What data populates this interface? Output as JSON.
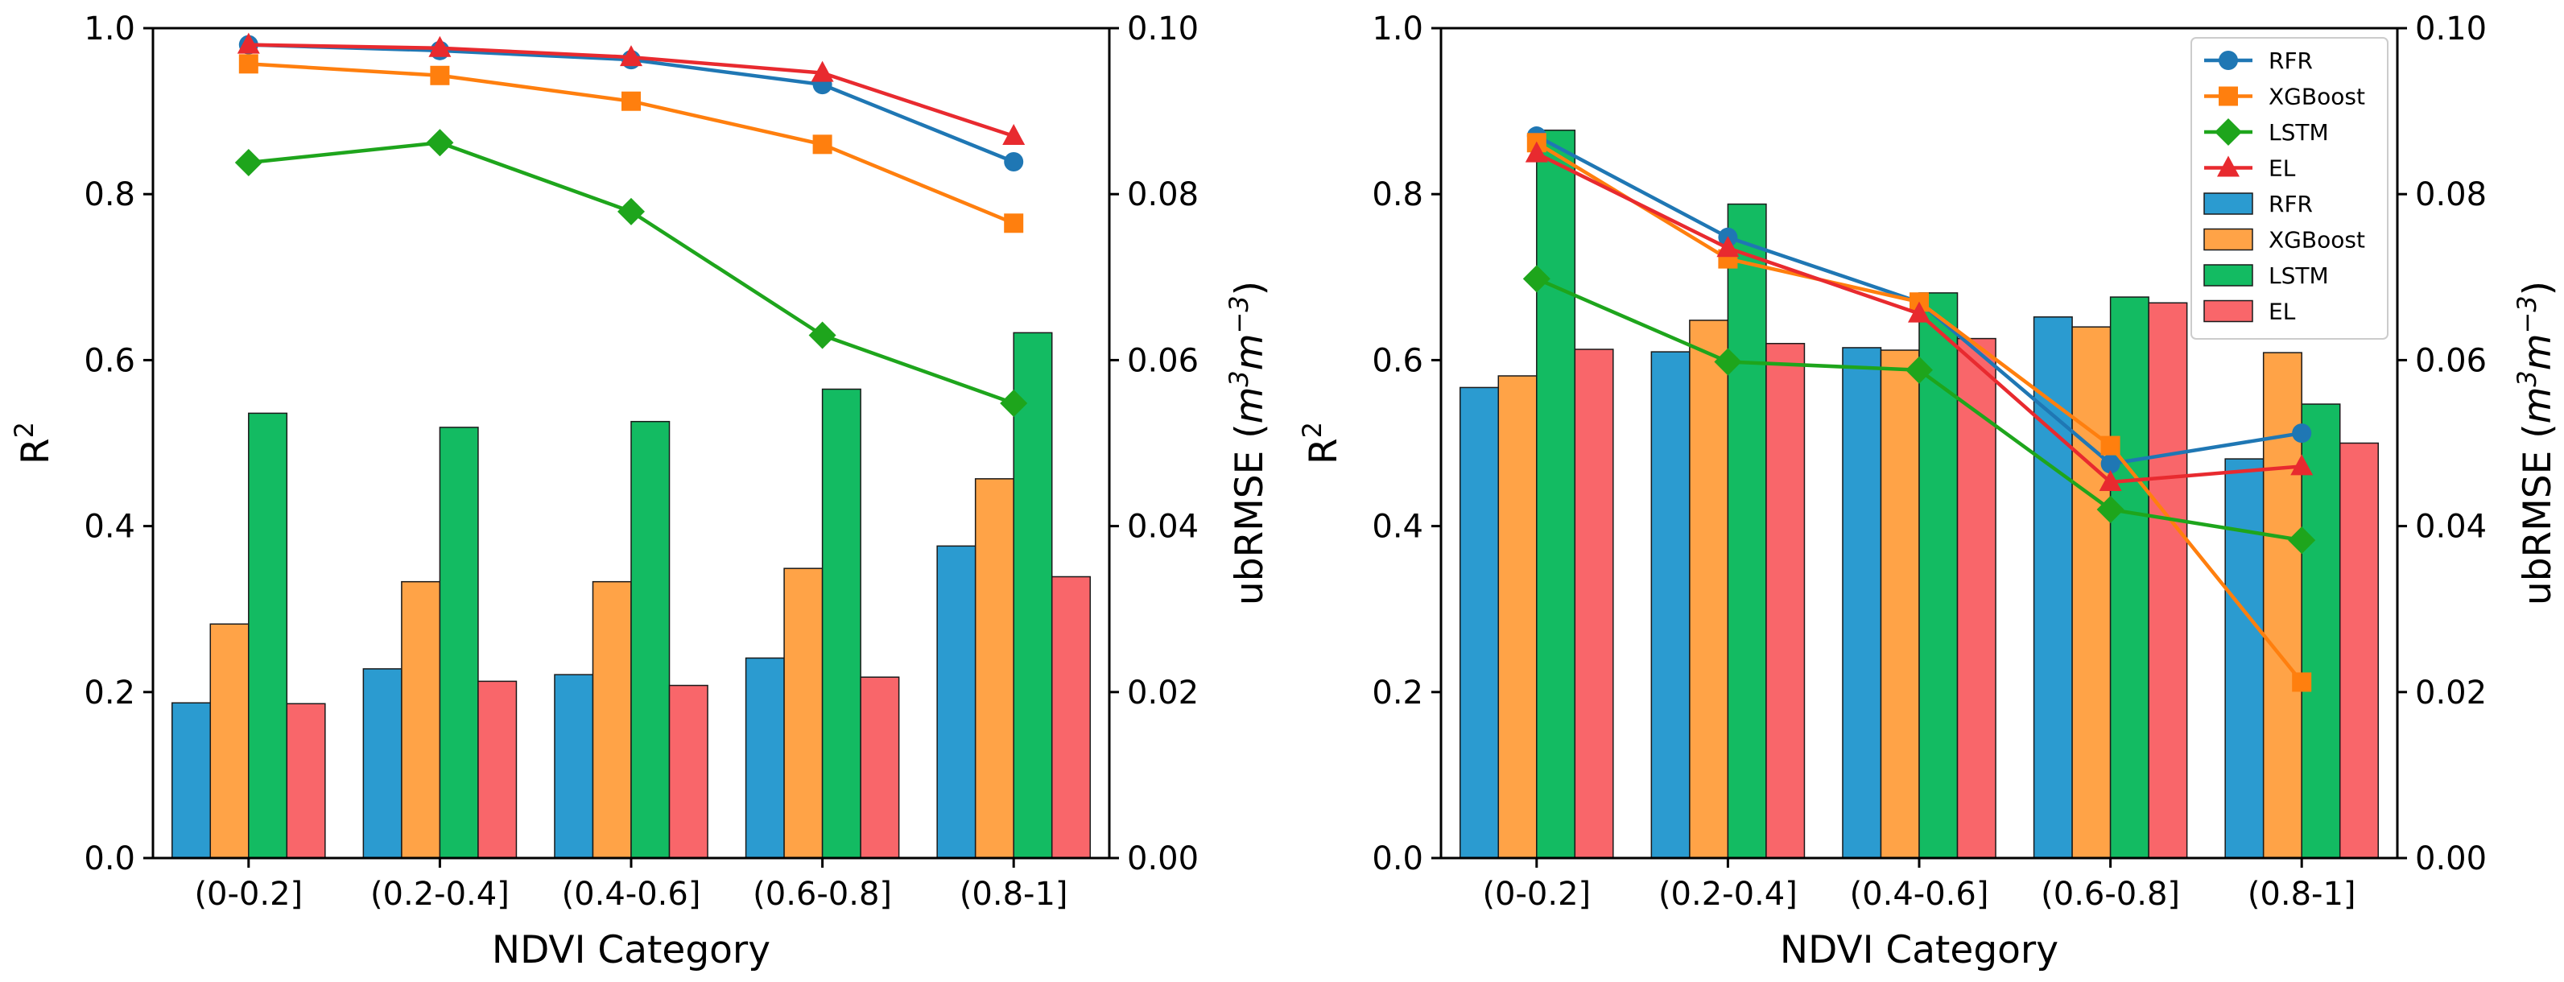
{
  "chart_data": [
    {
      "type": "bar+line",
      "panel": "left",
      "categories": [
        "(0-0.2]",
        "(0.2-0.4]",
        "(0.4-0.6]",
        "(0.6-0.8]",
        "(0.8-1]"
      ],
      "xlabel": "NDVI Category",
      "ylabel_left": {
        "base": "R",
        "sup": "2"
      },
      "ylabel_right": {
        "prefix": "ubRMSE (",
        "m": "m",
        "e1": "3",
        "m2": "m",
        "e2": "−3",
        "suffix": ")"
      },
      "ylim_left": [
        0,
        1.0
      ],
      "ylim_right": [
        0,
        0.1
      ],
      "yticks_left": [
        "0.0",
        "0.2",
        "0.4",
        "0.6",
        "0.8",
        "1.0"
      ],
      "yticks_right": [
        "0.00",
        "0.02",
        "0.04",
        "0.06",
        "0.08",
        "0.10"
      ],
      "bar_series": [
        {
          "name": "RFR",
          "color": "#2b9bd0",
          "values": [
            0.0187,
            0.0228,
            0.0221,
            0.0241,
            0.0376
          ]
        },
        {
          "name": "XGBoost",
          "color": "#ffa347",
          "values": [
            0.0282,
            0.0333,
            0.0333,
            0.0349,
            0.0457
          ]
        },
        {
          "name": "LSTM",
          "color": "#13bb62",
          "values": [
            0.0536,
            0.0519,
            0.0526,
            0.0565,
            0.0633
          ]
        },
        {
          "name": "EL",
          "color": "#f9666a",
          "values": [
            0.0186,
            0.0213,
            0.0208,
            0.0218,
            0.0339
          ]
        }
      ],
      "line_series": [
        {
          "name": "RFR",
          "color": "#1f77b4",
          "marker": "circle",
          "values": [
            0.98,
            0.973,
            0.962,
            0.932,
            0.839
          ]
        },
        {
          "name": "XGBoost",
          "color": "#ff7f0e",
          "marker": "square",
          "values": [
            0.957,
            0.943,
            0.912,
            0.86,
            0.765
          ]
        },
        {
          "name": "LSTM",
          "color": "#1ea51c",
          "marker": "diamond",
          "values": [
            0.838,
            0.862,
            0.779,
            0.63,
            0.548
          ]
        },
        {
          "name": "EL",
          "color": "#e82a2f",
          "marker": "triangle",
          "values": [
            0.98,
            0.976,
            0.965,
            0.946,
            0.87
          ]
        }
      ]
    },
    {
      "type": "bar+line",
      "panel": "right",
      "categories": [
        "(0-0.2]",
        "(0.2-0.4]",
        "(0.4-0.6]",
        "(0.6-0.8]",
        "(0.8-1]"
      ],
      "xlabel": "NDVI Category",
      "ylabel_left": {
        "base": "R",
        "sup": "2"
      },
      "ylabel_right": {
        "prefix": "ubRMSE (",
        "m": "m",
        "e1": "3",
        "m2": "m",
        "e2": "−3",
        "suffix": ")"
      },
      "ylim_left": [
        0,
        1.0
      ],
      "ylim_right": [
        0,
        0.1
      ],
      "yticks_left": [
        "0.0",
        "0.2",
        "0.4",
        "0.6",
        "0.8",
        "1.0"
      ],
      "yticks_right": [
        "0.00",
        "0.02",
        "0.04",
        "0.06",
        "0.08",
        "0.10"
      ],
      "legend_location": "top-right",
      "bar_series": [
        {
          "name": "RFR",
          "color": "#2b9bd0",
          "values": [
            0.0567,
            0.061,
            0.0615,
            0.0652,
            0.0481
          ]
        },
        {
          "name": "XGBoost",
          "color": "#ffa347",
          "values": [
            0.0581,
            0.0648,
            0.0612,
            0.064,
            0.0609
          ]
        },
        {
          "name": "LSTM",
          "color": "#13bb62",
          "values": [
            0.0877,
            0.0788,
            0.0681,
            0.0676,
            0.0547
          ]
        },
        {
          "name": "EL",
          "color": "#f9666a",
          "values": [
            0.0613,
            0.062,
            0.0626,
            0.0669,
            0.05
          ]
        }
      ],
      "line_series": [
        {
          "name": "RFR",
          "color": "#1f77b4",
          "marker": "circle",
          "values": [
            0.87,
            0.748,
            0.67,
            0.475,
            0.512
          ]
        },
        {
          "name": "XGBoost",
          "color": "#ff7f0e",
          "marker": "square",
          "values": [
            0.862,
            0.722,
            0.67,
            0.497,
            0.212
          ]
        },
        {
          "name": "LSTM",
          "color": "#1ea51c",
          "marker": "diamond",
          "values": [
            0.698,
            0.598,
            0.588,
            0.42,
            0.383
          ]
        },
        {
          "name": "EL",
          "color": "#e82a2f",
          "marker": "triangle",
          "values": [
            0.849,
            0.735,
            0.656,
            0.453,
            0.472
          ]
        }
      ]
    }
  ]
}
